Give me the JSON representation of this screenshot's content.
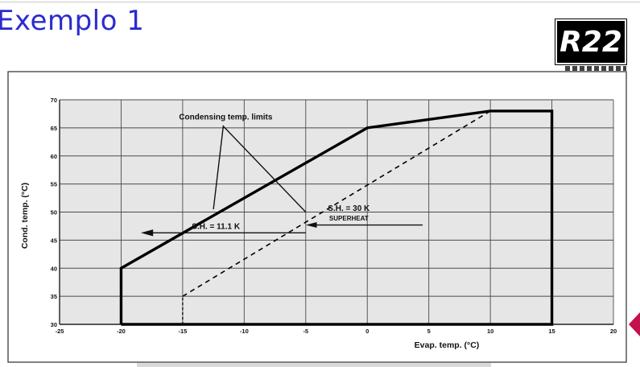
{
  "slide": {
    "title": "Exemplo 1",
    "badge": "R22"
  },
  "colors": {
    "title": "#2b2bd0",
    "badge_bg": "#000000",
    "badge_text": "#ffffff",
    "plot_background": "#e6e6e6",
    "envelope": "#000000",
    "dashed_line": "#000000",
    "nav_arrow": "#c4104c"
  },
  "icons": {
    "nav_arrow": "left-triangle-icon"
  },
  "chart_data": {
    "type": "line",
    "xlabel": "Evap. temp. (°C)",
    "ylabel": "Cond. temp. (°C)",
    "xlim": [
      -25,
      20
    ],
    "ylim": [
      30,
      70
    ],
    "xticks": [
      -25,
      -20,
      -15,
      -10,
      -5,
      0,
      5,
      10,
      15,
      20
    ],
    "yticks": [
      30,
      35,
      40,
      45,
      50,
      55,
      60,
      65,
      70
    ],
    "grid": true,
    "series": [
      {
        "style": "solid-thick",
        "x": [
          -20,
          -20,
          0,
          10,
          15,
          15,
          -20
        ],
        "y": [
          30,
          40,
          65,
          68,
          68,
          30,
          30
        ]
      },
      {
        "style": "dashed",
        "x": [
          -15,
          10
        ],
        "y": [
          35,
          68
        ]
      }
    ],
    "annotations": [
      {
        "text": "Condensing temp. limits",
        "x": -11.5,
        "y": 66.5
      },
      {
        "text": "S.H. = 11.1 K",
        "x": -12.3,
        "y": 47.0
      },
      {
        "text": "S.H. = 30 K",
        "x": -1.5,
        "y": 50.2
      },
      {
        "text": "SUPERHEAT",
        "x": -1.5,
        "y": 48.5
      }
    ]
  }
}
